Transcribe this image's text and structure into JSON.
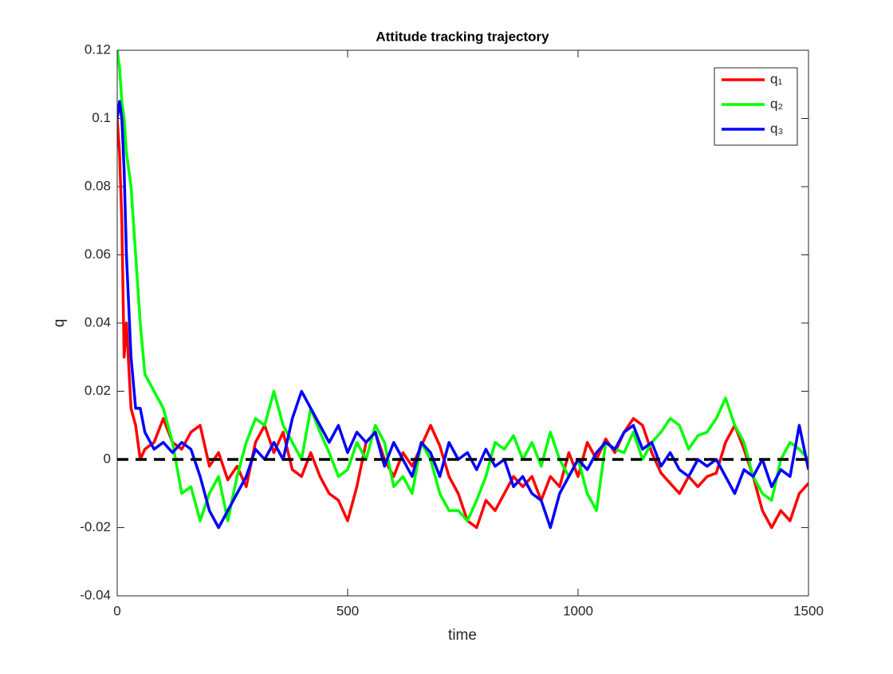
{
  "chart_data": {
    "type": "line",
    "title": "Attitude tracking trajectory",
    "xlabel": "time",
    "ylabel": "q",
    "x": [
      0,
      5,
      10,
      15,
      20,
      30,
      40,
      50,
      60,
      80,
      100,
      120,
      140,
      160,
      180,
      200,
      220,
      240,
      260,
      280,
      300,
      320,
      340,
      360,
      380,
      400,
      420,
      440,
      460,
      480,
      500,
      520,
      540,
      560,
      580,
      600,
      620,
      640,
      660,
      680,
      700,
      720,
      740,
      760,
      780,
      800,
      820,
      840,
      860,
      880,
      900,
      920,
      940,
      960,
      980,
      1000,
      1020,
      1040,
      1060,
      1080,
      1100,
      1120,
      1140,
      1160,
      1180,
      1200,
      1220,
      1240,
      1260,
      1280,
      1300,
      1320,
      1340,
      1360,
      1380,
      1400,
      1420,
      1440,
      1460,
      1480,
      1500
    ],
    "series": [
      {
        "name": "q₁",
        "color": "#ff0000",
        "values": [
          0.1,
          0.09,
          0.07,
          0.03,
          0.04,
          0.015,
          0.01,
          0,
          0.003,
          0.005,
          0.012,
          0.005,
          0.003,
          0.008,
          0.01,
          -0.002,
          0.002,
          -0.006,
          -0.002,
          -0.008,
          0.005,
          0.01,
          0.002,
          0.008,
          -0.003,
          -0.005,
          0.002,
          -0.005,
          -0.01,
          -0.012,
          -0.018,
          -0.008,
          0.005,
          0.008,
          0,
          -0.005,
          0.002,
          -0.002,
          0.004,
          0.01,
          0.004,
          -0.005,
          -0.01,
          -0.018,
          -0.02,
          -0.012,
          -0.015,
          -0.01,
          -0.005,
          -0.008,
          -0.005,
          -0.012,
          -0.005,
          -0.008,
          0.002,
          -0.005,
          0.005,
          0,
          0.006,
          0.002,
          0.008,
          0.012,
          0.01,
          0.002,
          -0.004,
          -0.007,
          -0.01,
          -0.005,
          -0.008,
          -0.005,
          -0.004,
          0.005,
          0.01,
          0.003,
          -0.005,
          -0.015,
          -0.02,
          -0.015,
          -0.018,
          -0.01,
          -0.007
        ]
      },
      {
        "name": "q₂",
        "color": "#00ff00",
        "values": [
          0.12,
          0.115,
          0.105,
          0.1,
          0.09,
          0.08,
          0.06,
          0.04,
          0.025,
          0.02,
          0.015,
          0.005,
          -0.01,
          -0.008,
          -0.018,
          -0.01,
          -0.005,
          -0.018,
          -0.005,
          0.005,
          0.012,
          0.01,
          0.02,
          0.01,
          0.005,
          0,
          0.015,
          0.008,
          0.002,
          -0.005,
          -0.003,
          0.005,
          0,
          0.01,
          0.005,
          -0.008,
          -0.005,
          -0.01,
          0.005,
          0,
          -0.01,
          -0.015,
          -0.015,
          -0.018,
          -0.012,
          -0.005,
          0.005,
          0.003,
          0.007,
          0,
          0.005,
          -0.002,
          0.008,
          0,
          -0.005,
          0,
          -0.01,
          -0.015,
          0.005,
          0.003,
          0.002,
          0.008,
          0,
          0.005,
          0.008,
          0.012,
          0.01,
          0.003,
          0.007,
          0.008,
          0.012,
          0.018,
          0.01,
          0.005,
          -0.005,
          -0.01,
          -0.012,
          0,
          0.005,
          0.003,
          0
        ]
      },
      {
        "name": "q₃",
        "color": "#0000ff",
        "values": [
          0.1,
          0.105,
          0.1,
          0.085,
          0.06,
          0.03,
          0.015,
          0.015,
          0.008,
          0.003,
          0.005,
          0.002,
          0.005,
          0.003,
          -0.005,
          -0.015,
          -0.02,
          -0.015,
          -0.01,
          -0.005,
          0.003,
          0,
          0.005,
          0,
          0.012,
          0.02,
          0.015,
          0.01,
          0.005,
          0.01,
          0.002,
          0.008,
          0.005,
          0.008,
          -0.002,
          0.005,
          0,
          -0.005,
          0.005,
          0.002,
          -0.005,
          0.005,
          0,
          0.002,
          -0.003,
          0.003,
          -0.002,
          0,
          -0.008,
          -0.005,
          -0.01,
          -0.012,
          -0.02,
          -0.01,
          -0.005,
          0,
          -0.003,
          0.002,
          0.005,
          0.003,
          0.008,
          0.01,
          0.003,
          0.005,
          -0.002,
          0.002,
          -0.003,
          -0.005,
          0,
          -0.002,
          0,
          -0.005,
          -0.01,
          -0.003,
          -0.005,
          0,
          -0.008,
          -0.003,
          -0.005,
          0.01,
          -0.003
        ]
      }
    ],
    "hline": {
      "value": 0,
      "color": "#000000"
    },
    "xlim": [
      0,
      1500
    ],
    "xticks": [
      0,
      500,
      1000,
      1500
    ],
    "ylim": [
      -0.04,
      0.12
    ],
    "yticks": [
      -0.04,
      -0.02,
      0,
      0.02,
      0.04,
      0.06,
      0.08,
      0.1,
      0.12
    ],
    "legend": "top-right"
  }
}
